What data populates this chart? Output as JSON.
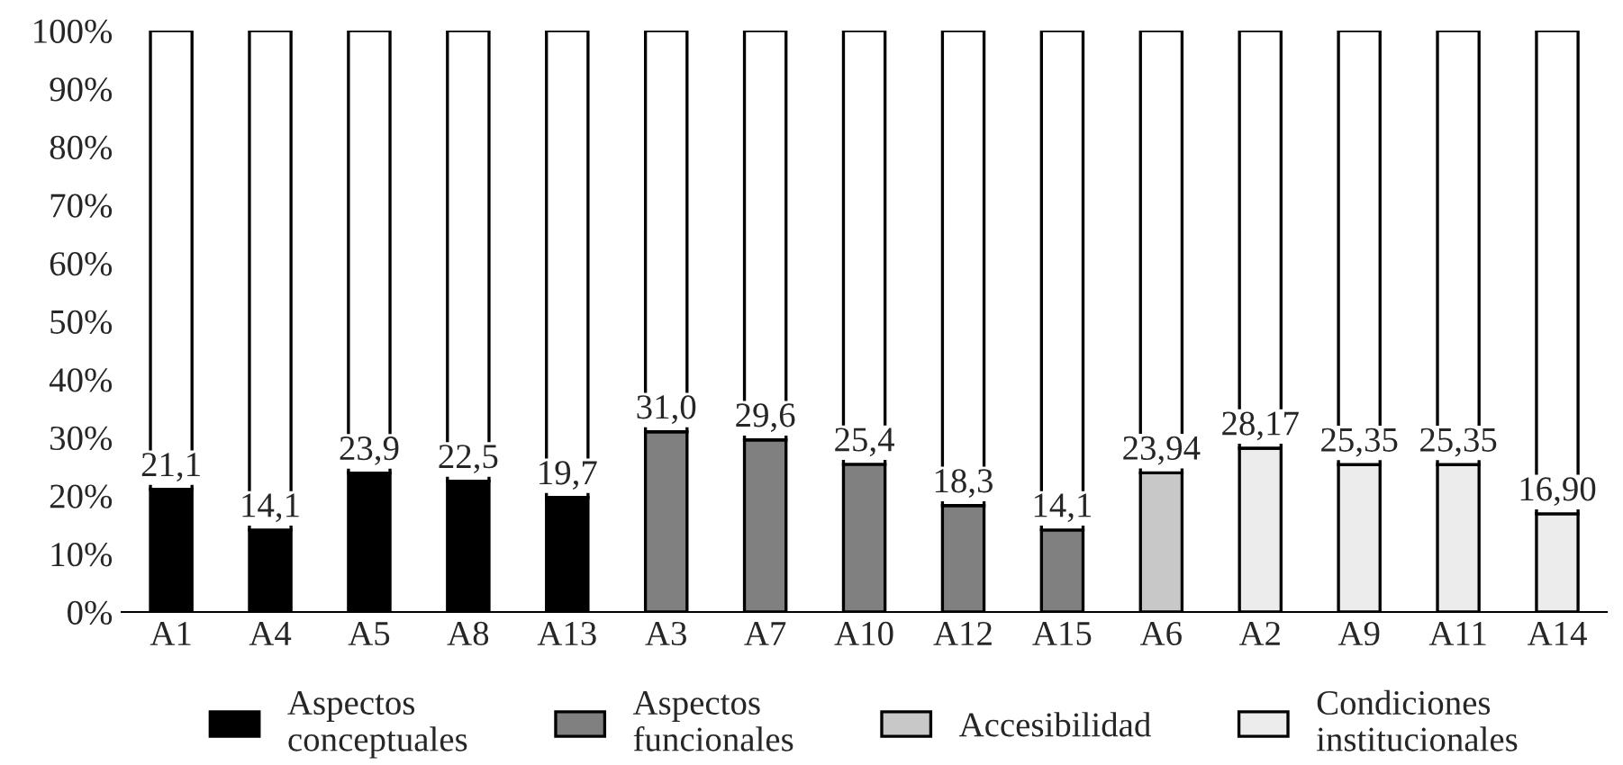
{
  "chart_data": {
    "type": "bar",
    "stacked": true,
    "categories": [
      "A1",
      "A4",
      "A5",
      "A8",
      "A13",
      "A3",
      "A7",
      "A10",
      "A12",
      "A15",
      "A6",
      "A2",
      "A9",
      "A11",
      "A14"
    ],
    "series": [
      {
        "name": "Aspectos conceptuales",
        "color": "#000000",
        "values": [
          21.1,
          14.1,
          23.9,
          22.5,
          19.7,
          null,
          null,
          null,
          null,
          null,
          null,
          null,
          null,
          null,
          null
        ],
        "value_labels": [
          "21,1",
          "14,1",
          "23,9",
          "22,5",
          "19,7",
          null,
          null,
          null,
          null,
          null,
          null,
          null,
          null,
          null,
          null
        ]
      },
      {
        "name": "Aspectos funcionales",
        "color": "#808080",
        "values": [
          null,
          null,
          null,
          null,
          null,
          31.0,
          29.6,
          25.4,
          18.3,
          14.1,
          null,
          null,
          null,
          null,
          null
        ],
        "value_labels": [
          null,
          null,
          null,
          null,
          null,
          "31,0",
          "29,6",
          "25,4",
          "18,3",
          "14,1",
          null,
          null,
          null,
          null,
          null
        ]
      },
      {
        "name": "Accesibilidad",
        "color": "#c8c8c8",
        "values": [
          null,
          null,
          null,
          null,
          null,
          null,
          null,
          null,
          null,
          null,
          23.94,
          null,
          null,
          null,
          null
        ],
        "value_labels": [
          null,
          null,
          null,
          null,
          null,
          null,
          null,
          null,
          null,
          null,
          "23,94",
          null,
          null,
          null,
          null
        ]
      },
      {
        "name": "Condiciones institucionales",
        "color": "#ececec",
        "values": [
          null,
          null,
          null,
          null,
          null,
          null,
          null,
          null,
          null,
          null,
          null,
          28.17,
          25.35,
          25.35,
          16.9
        ],
        "value_labels": [
          null,
          null,
          null,
          null,
          null,
          null,
          null,
          null,
          null,
          null,
          null,
          "28,17",
          "25,35",
          "25,35",
          "16,90"
        ]
      },
      {
        "color": "#ffffff",
        "values": [
          78.9,
          85.9,
          76.1,
          77.5,
          80.3,
          69.0,
          70.4,
          74.6,
          81.7,
          85.9,
          76.06,
          71.83,
          74.65,
          74.65,
          83.1
        ]
      }
    ],
    "ylim": [
      0,
      100
    ],
    "yticks": [
      {
        "value": 0,
        "label": "0%"
      },
      {
        "value": 10,
        "label": "10%"
      },
      {
        "value": 20,
        "label": "20%"
      },
      {
        "value": 30,
        "label": "30%"
      },
      {
        "value": 40,
        "label": "40%"
      },
      {
        "value": 50,
        "label": "50%"
      },
      {
        "value": 60,
        "label": "60%"
      },
      {
        "value": 70,
        "label": "70%"
      },
      {
        "value": 80,
        "label": "80%"
      },
      {
        "value": 90,
        "label": "90%"
      },
      {
        "value": 100,
        "label": "100%"
      }
    ],
    "legend": "bottom"
  }
}
